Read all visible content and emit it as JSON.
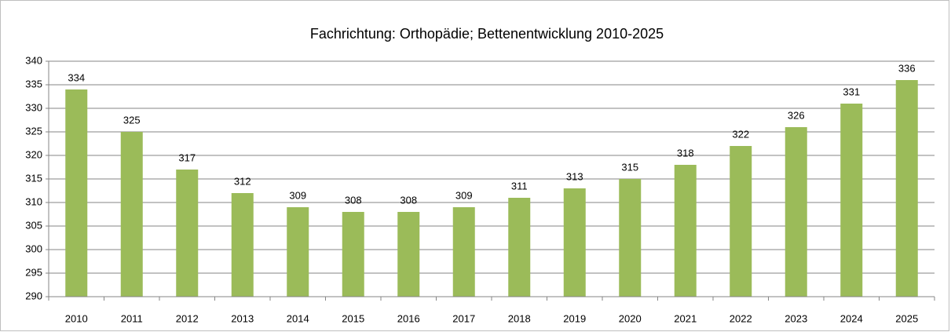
{
  "chart_data": {
    "type": "bar",
    "title": "Fachrichtung:  Orthopädie; Bettenentwicklung  2010-2025",
    "categories": [
      "2010",
      "2011",
      "2012",
      "2013",
      "2014",
      "2015",
      "2016",
      "2017",
      "2018",
      "2019",
      "2020",
      "2021",
      "2022",
      "2023",
      "2024",
      "2025"
    ],
    "values": [
      334,
      325,
      317,
      312,
      309,
      308,
      308,
      309,
      311,
      313,
      315,
      318,
      322,
      326,
      331,
      336
    ],
    "color": "#9bbb59",
    "ylim": [
      290,
      340
    ],
    "yticks": [
      290,
      295,
      300,
      305,
      310,
      315,
      320,
      325,
      330,
      335,
      340
    ],
    "grid": true
  }
}
